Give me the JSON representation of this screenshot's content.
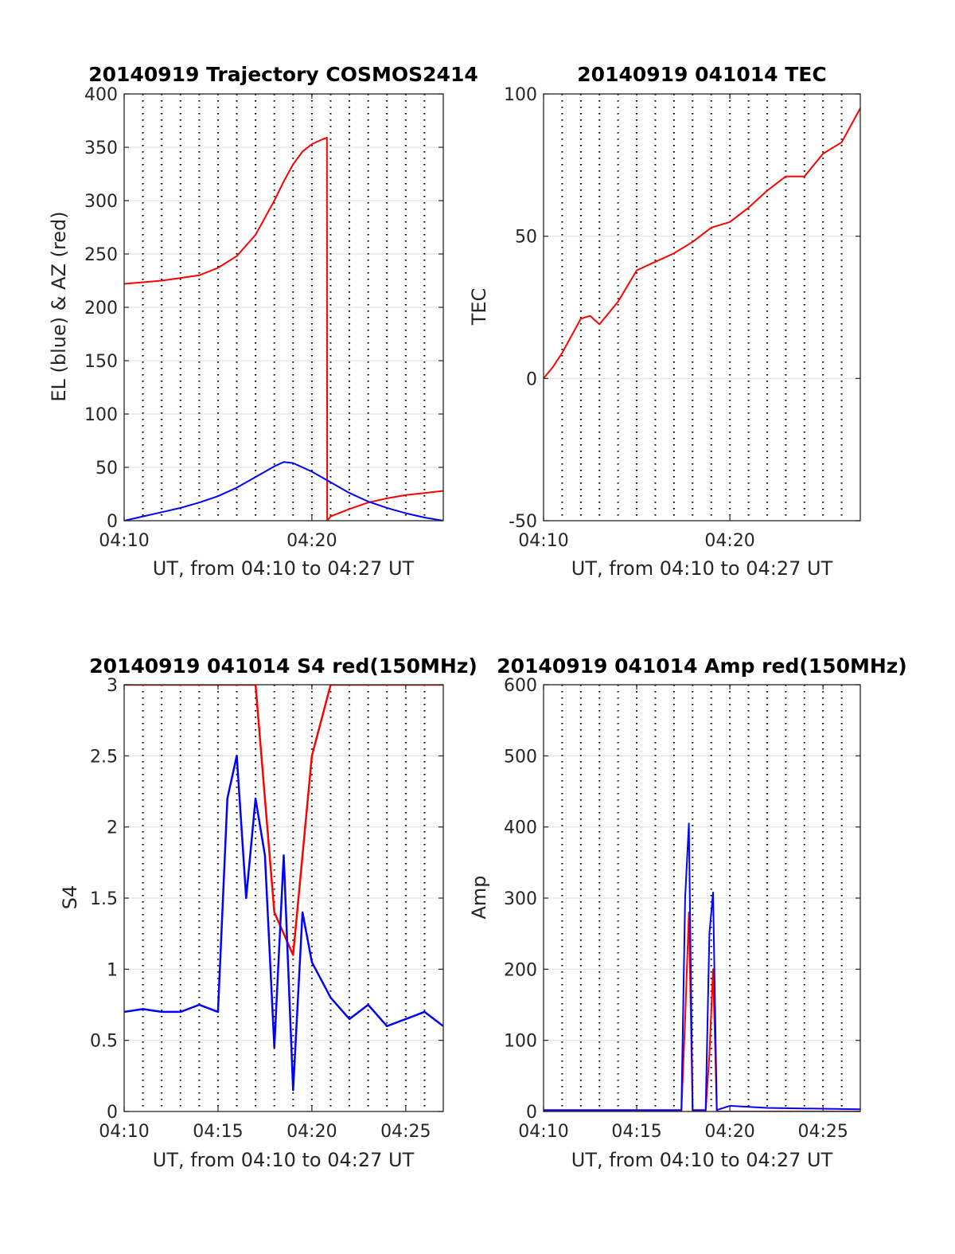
{
  "figure": {
    "background": "#ffffff"
  },
  "chart_data": [
    {
      "type": "line",
      "title": "20140919 Trajectory COSMOS2414",
      "xlabel": "UT, from 04:10 to 04:27 UT",
      "ylabel": "EL (blue) & AZ (red)",
      "xlim": [
        "04:10",
        "04:27"
      ],
      "ylim": [
        0,
        400
      ],
      "x_ticks": [
        "04:10",
        "04:20"
      ],
      "y_ticks": [
        0,
        50,
        100,
        150,
        200,
        250,
        300,
        350,
        400
      ],
      "grid": true,
      "minute_gridlines": "dotted",
      "series": [
        {
          "color": "#ff0000",
          "x": [
            "04:10",
            "04:12",
            "04:14",
            "04:15",
            "04:16",
            "04:17",
            "04:18",
            "04:18:30",
            "04:19",
            "04:19:30",
            "04:20",
            "04:20:30",
            "04:20:48",
            "04:20:49",
            "04:21",
            "04:22",
            "04:23",
            "04:24",
            "04:25",
            "04:26",
            "04:27"
          ],
          "y": [
            222,
            225,
            230,
            237,
            248,
            268,
            300,
            318,
            334,
            346,
            353,
            357,
            359,
            0,
            4,
            11,
            17,
            21,
            24,
            26,
            28
          ]
        },
        {
          "color": "#0000ff",
          "x": [
            "04:10",
            "04:11",
            "04:12",
            "04:13",
            "04:14",
            "04:15",
            "04:16",
            "04:17",
            "04:18",
            "04:18:30",
            "04:19",
            "04:20",
            "04:21",
            "04:22",
            "04:23",
            "04:24",
            "04:25",
            "04:26",
            "04:27"
          ],
          "y": [
            0,
            4,
            8,
            12,
            17,
            23,
            31,
            41,
            51,
            55,
            54,
            46,
            36,
            26,
            18,
            12,
            7,
            3,
            0
          ]
        }
      ]
    },
    {
      "type": "line",
      "title": "20140919 041014 TEC",
      "xlabel": "UT, from 04:10 to 04:27 UT",
      "ylabel": "TEC",
      "xlim": [
        "04:10",
        "04:27"
      ],
      "ylim": [
        -50,
        100
      ],
      "x_ticks": [
        "04:10",
        "04:20"
      ],
      "y_ticks": [
        -50,
        0,
        50,
        100
      ],
      "grid": true,
      "minute_gridlines": "dotted",
      "series": [
        {
          "color": "#ff0000",
          "x": [
            "04:10",
            "04:10:30",
            "04:11",
            "04:12",
            "04:12:30",
            "04:13",
            "04:14",
            "04:15",
            "04:16",
            "04:17",
            "04:18",
            "04:19",
            "04:20",
            "04:21",
            "04:22",
            "04:23",
            "04:24",
            "04:25",
            "04:26",
            "04:27"
          ],
          "y": [
            0,
            4,
            9,
            21,
            22,
            19,
            27,
            38,
            41,
            44,
            48,
            53,
            55,
            60,
            66,
            71,
            71,
            79,
            83,
            95
          ]
        }
      ]
    },
    {
      "type": "line",
      "title": "20140919 041014 S4 red(150MHz)",
      "xlabel": "UT, from 04:10 to 04:27 UT",
      "ylabel": "S4",
      "xlim": [
        "04:10",
        "04:27"
      ],
      "ylim": [
        0,
        3
      ],
      "x_ticks": [
        "04:10",
        "04:15",
        "04:20",
        "04:25"
      ],
      "y_ticks": [
        0,
        0.5,
        1,
        1.5,
        2,
        2.5,
        3
      ],
      "grid": true,
      "minute_gridlines": "dotted",
      "series": [
        {
          "color": "#ff0000",
          "x": [
            "04:10",
            "04:15",
            "04:17",
            "04:18",
            "04:19",
            "04:20",
            "04:21",
            "04:27"
          ],
          "y": [
            3,
            3,
            3,
            1.4,
            1.1,
            2.5,
            3,
            3
          ]
        },
        {
          "color": "#0000ff",
          "x": [
            "04:10",
            "04:11",
            "04:12",
            "04:13",
            "04:14",
            "04:15",
            "04:15:30",
            "04:16",
            "04:16:30",
            "04:17",
            "04:17:30",
            "04:18",
            "04:18:30",
            "04:19",
            "04:19:30",
            "04:20",
            "04:21",
            "04:22",
            "04:23",
            "04:24",
            "04:25",
            "04:26",
            "04:27"
          ],
          "y": [
            0.7,
            0.72,
            0.7,
            0.7,
            0.75,
            0.7,
            2.2,
            2.5,
            1.5,
            2.2,
            1.8,
            0.45,
            1.8,
            0.15,
            1.4,
            1.05,
            0.8,
            0.65,
            0.75,
            0.6,
            0.65,
            0.7,
            0.6
          ]
        }
      ]
    },
    {
      "type": "line",
      "title": "20140919 041014 Amp red(150MHz)",
      "xlabel": "UT, from 04:10 to 04:27 UT",
      "ylabel": "Amp",
      "xlim": [
        "04:10",
        "04:27"
      ],
      "ylim": [
        0,
        600
      ],
      "x_ticks": [
        "04:10",
        "04:15",
        "04:20",
        "04:25"
      ],
      "y_ticks": [
        0,
        100,
        200,
        300,
        400,
        500,
        600
      ],
      "grid": true,
      "minute_gridlines": "dotted",
      "series": [
        {
          "color": "#ff0000",
          "x": [
            "04:10",
            "04:17:24",
            "04:17:36",
            "04:17:48",
            "04:18:00",
            "04:18:42",
            "04:18:54",
            "04:19:06",
            "04:19:18",
            "04:27"
          ],
          "y": [
            0,
            0,
            130,
            280,
            0,
            0,
            80,
            200,
            0,
            0
          ]
        },
        {
          "color": "#0000ff",
          "x": [
            "04:10",
            "04:17:24",
            "04:17:36",
            "04:17:48",
            "04:18:00",
            "04:18:42",
            "04:18:54",
            "04:19:06",
            "04:19:18",
            "04:20",
            "04:22",
            "04:27"
          ],
          "y": [
            2,
            2,
            300,
            405,
            2,
            2,
            250,
            308,
            2,
            8,
            5,
            3
          ]
        }
      ]
    }
  ]
}
